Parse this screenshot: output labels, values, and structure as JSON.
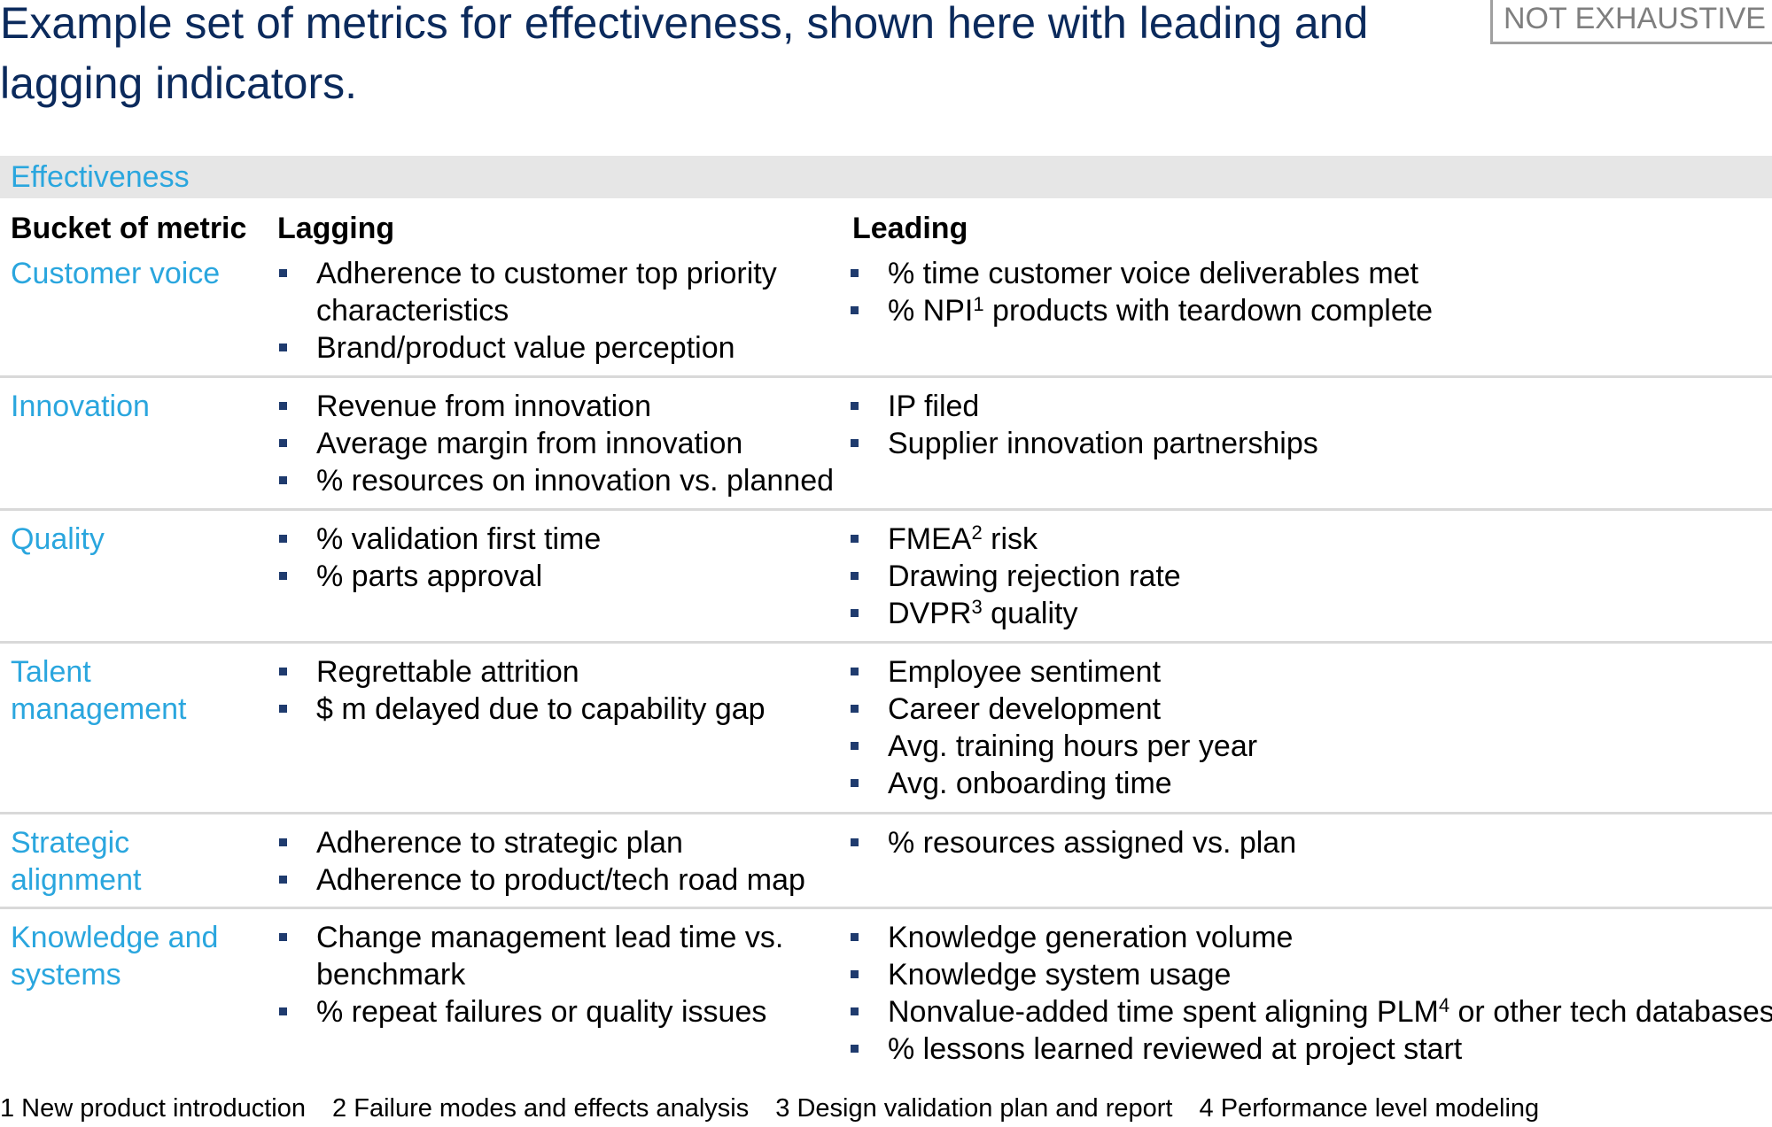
{
  "title": "Example set of metrics for effectiveness, shown here with leading and lagging indicators.",
  "badge": "NOT EXHAUSTIVE",
  "section": "Effectiveness",
  "headers": {
    "bucket": "Bucket of metric",
    "lagging": "Lagging",
    "leading": "Leading"
  },
  "rows": [
    {
      "category": "Customer voice",
      "lagging": [
        "Adherence to customer top priority characteristics",
        "Brand/product value perception"
      ],
      "leading": [
        {
          "before": "% time customer voice deliverables met",
          "sup": "",
          "after": ""
        },
        {
          "before": "% NPI",
          "sup": "1",
          "after": " products with teardown complete"
        }
      ]
    },
    {
      "category": "Innovation",
      "lagging": [
        "Revenue from innovation",
        "Average margin from innovation",
        "% resources on innovation vs. planned"
      ],
      "leading": [
        {
          "before": "IP filed",
          "sup": "",
          "after": ""
        },
        {
          "before": "Supplier innovation partnerships",
          "sup": "",
          "after": ""
        }
      ]
    },
    {
      "category": "Quality",
      "lagging": [
        "% validation first time",
        "% parts approval"
      ],
      "leading": [
        {
          "before": "FMEA",
          "sup": "2",
          "after": " risk"
        },
        {
          "before": "Drawing rejection rate",
          "sup": "",
          "after": ""
        },
        {
          "before": "DVPR",
          "sup": "3",
          "after": " quality"
        }
      ]
    },
    {
      "category": "Talent management",
      "lagging": [
        "Regrettable attrition",
        "$ m delayed due to capability gap"
      ],
      "leading": [
        {
          "before": "Employee sentiment",
          "sup": "",
          "after": ""
        },
        {
          "before": "Career development",
          "sup": "",
          "after": ""
        },
        {
          "before": "Avg. training hours per year",
          "sup": "",
          "after": ""
        },
        {
          "before": "Avg. onboarding time",
          "sup": "",
          "after": ""
        }
      ]
    },
    {
      "category": "Strategic alignment",
      "lagging": [
        "Adherence to strategic plan",
        "Adherence to product/tech road map"
      ],
      "leading": [
        {
          "before": "% resources assigned vs. plan",
          "sup": "",
          "after": ""
        }
      ]
    },
    {
      "category": "Knowledge and systems",
      "lagging": [
        "Change management lead time vs. benchmark",
        "% repeat failures or quality issues"
      ],
      "leading": [
        {
          "before": "Knowledge generation volume",
          "sup": "",
          "after": ""
        },
        {
          "before": "Knowledge system usage",
          "sup": "",
          "after": ""
        },
        {
          "before": "Nonvalue-added time spent aligning PLM",
          "sup": "4",
          "after": " or other tech databases"
        },
        {
          "before": "% lessons learned reviewed at project start",
          "sup": "",
          "after": ""
        }
      ]
    }
  ],
  "footnotes": [
    "1 New product introduction",
    "2 Failure modes and effects analysis",
    "3 Design validation plan and report",
    "4 Performance level modeling"
  ]
}
